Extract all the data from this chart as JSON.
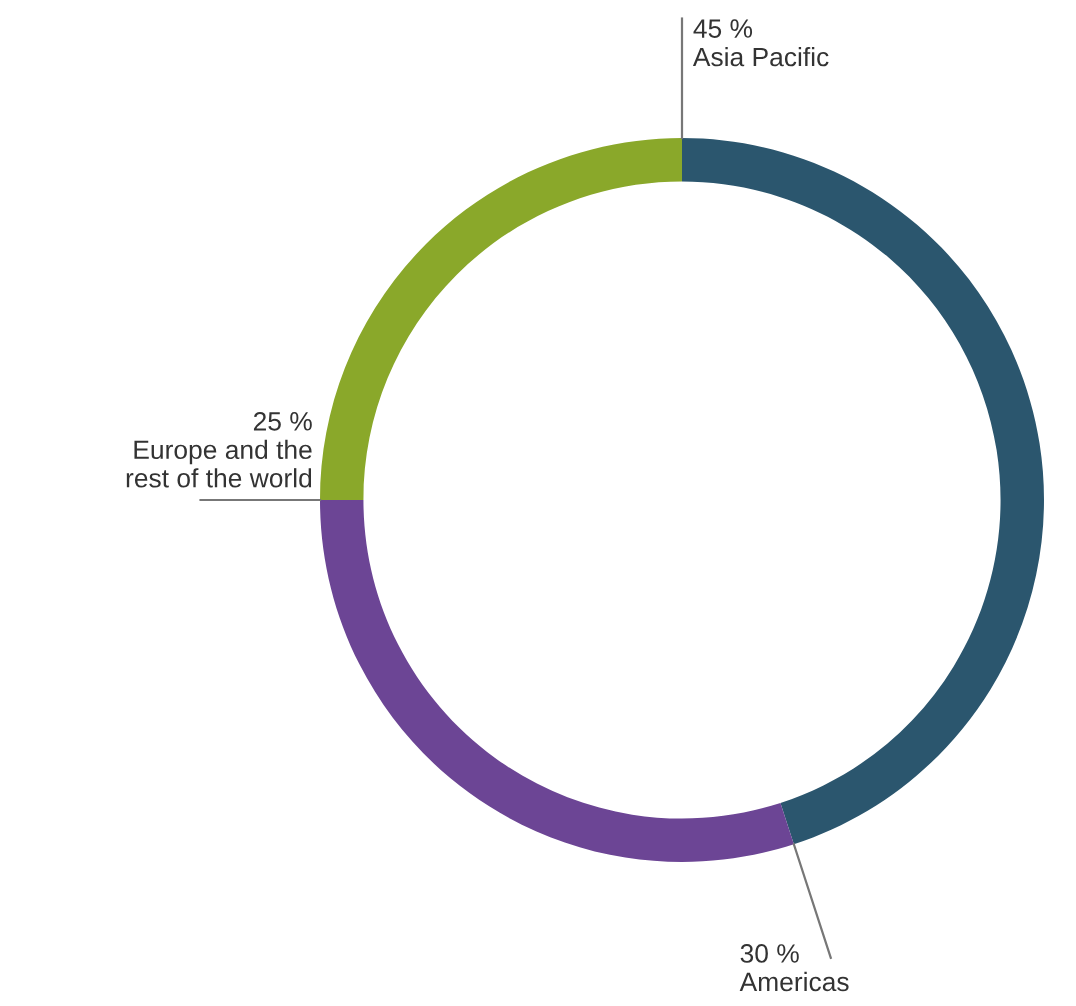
{
  "chart_data": {
    "type": "donut",
    "categories": [
      "Asia Pacific",
      "Americas",
      "Europe and the\nrest of the world"
    ],
    "values": [
      45,
      30,
      25
    ],
    "value_labels": [
      "45 %",
      "30 %",
      "25 %"
    ],
    "colors": [
      "#2b566e",
      "#6c4595",
      "#8aa82a"
    ]
  }
}
